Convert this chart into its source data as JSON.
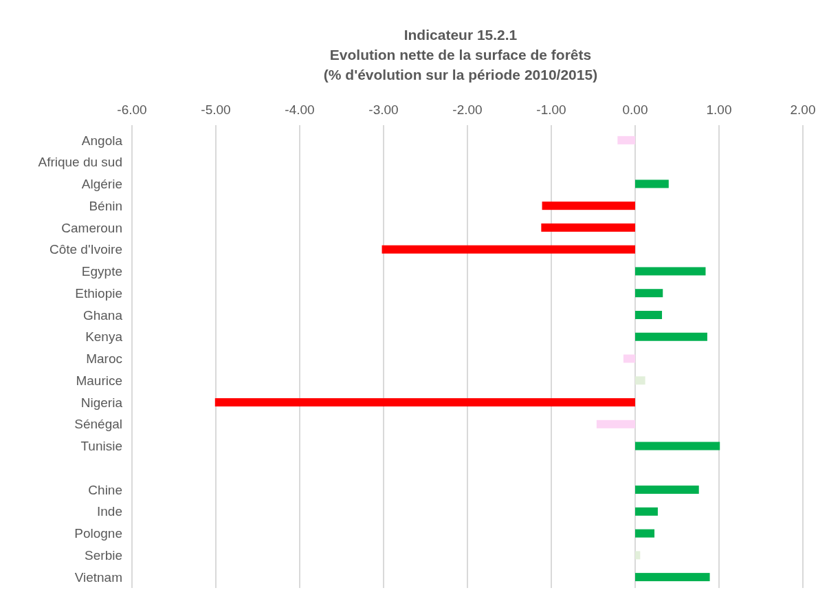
{
  "chart_data": {
    "type": "bar",
    "orientation": "horizontal",
    "title": "Indicateur 15.2.1\nEvolution nette de la surface de forêts\n(% d'évolution sur la période 2010/2015)",
    "categories": [
      "Angola",
      "Afrique du sud",
      "Algérie",
      "Bénin",
      "Cameroun",
      "Côte d'Ivoire",
      "Egypte",
      "Ethiopie",
      "Ghana",
      "Kenya",
      "Maroc",
      "Maurice",
      "Nigeria",
      "Sénégal",
      "Tunisie",
      null,
      "Chine",
      "Inde",
      "Pologne",
      "Serbie",
      "Vietnam"
    ],
    "values": [
      -0.21,
      null,
      0.4,
      -1.11,
      -1.12,
      -3.02,
      0.84,
      0.33,
      0.32,
      0.86,
      -0.14,
      0.12,
      -5.01,
      -0.46,
      1.01,
      null,
      0.76,
      0.27,
      0.23,
      0.06,
      0.89
    ],
    "colors": [
      "#fcd5f4",
      null,
      "#00b050",
      "#ff0000",
      "#ff0000",
      "#ff0000",
      "#00b050",
      "#00b050",
      "#00b050",
      "#00b050",
      "#fcd5f4",
      "#e2efda",
      "#ff0000",
      "#fcd5f4",
      "#00b050",
      null,
      "#00b050",
      "#00b050",
      "#00b050",
      "#e2efda",
      "#00b050"
    ],
    "xlim": [
      -6,
      2
    ],
    "xticks": [
      {
        "value": -6,
        "label": "-6.00"
      },
      {
        "value": -5,
        "label": "-5.00"
      },
      {
        "value": -4,
        "label": "-4.00"
      },
      {
        "value": -3,
        "label": "-3.00"
      },
      {
        "value": -2,
        "label": "-2.00"
      },
      {
        "value": -1,
        "label": "-1.00"
      },
      {
        "value": 0,
        "label": "0.00"
      },
      {
        "value": 1,
        "label": "1.00"
      },
      {
        "value": 2,
        "label": "2.00"
      }
    ],
    "grid": "x"
  }
}
